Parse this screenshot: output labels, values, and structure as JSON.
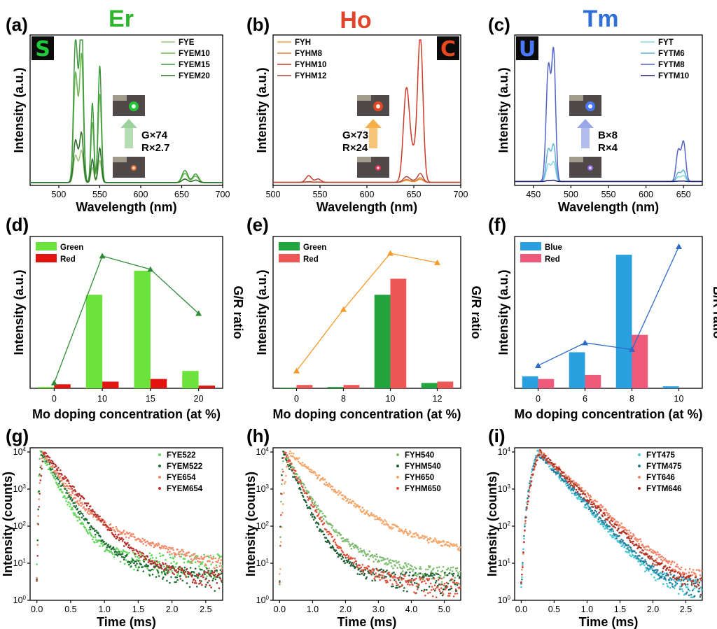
{
  "figure": {
    "panel_labels": [
      "(a)",
      "(b)",
      "(c)",
      "(d)",
      "(e)",
      "(f)",
      "(g)",
      "(h)",
      "(i)"
    ]
  },
  "chart_data": [
    {
      "id": "a",
      "type": "line",
      "element_title": "Er",
      "title_color": "#2db52d",
      "xlabel": "Wavelength (nm)",
      "ylabel": "Intensity (a.u.)",
      "xlim": [
        465,
        700
      ],
      "xticks": [
        500,
        550,
        600,
        650,
        700
      ],
      "ylim": [
        0,
        1
      ],
      "legend_position": "top-right",
      "series": [
        {
          "name": "FYE",
          "color": "#9ec77a"
        },
        {
          "name": "FYEM10",
          "color": "#6cb84e"
        },
        {
          "name": "FYEM15",
          "color": "#3e9a3e"
        },
        {
          "name": "FYEM20",
          "color": "#2a6e2a"
        }
      ],
      "peaks_nm": [
        520,
        528,
        541,
        550,
        655,
        667
      ],
      "peak_scale": [
        0.18,
        0.72,
        0.95,
        0.28
      ],
      "annotation": {
        "line1": "G×74",
        "line2": "R×2.7",
        "arrow_color": "#9ed09e"
      },
      "inset_letter": "S",
      "inset_color": "#22c93a"
    },
    {
      "id": "b",
      "type": "line",
      "element_title": "Ho",
      "title_color": "#e0452b",
      "xlabel": "Wavelength (nm)",
      "ylabel": "Intensity (a.u.)",
      "xlim": [
        500,
        700
      ],
      "xticks": [
        500,
        550,
        600,
        650,
        700
      ],
      "ylim": [
        0,
        1
      ],
      "legend_position": "top-left",
      "series": [
        {
          "name": "FYH",
          "color": "#f0a23a"
        },
        {
          "name": "FYHM8",
          "color": "#e37b34"
        },
        {
          "name": "FYHM10",
          "color": "#cc3a2a"
        },
        {
          "name": "FYHM12",
          "color": "#a8483a"
        }
      ],
      "peaks_nm": [
        540,
        645,
        657
      ],
      "peak_scale": [
        0.02,
        0.03,
        1.0,
        0.06
      ],
      "annotation": {
        "line1": "G×73",
        "line2": "R×24",
        "arrow_color": "#f5b04a"
      },
      "inset_letter": "C",
      "inset_color": "#e8481e"
    },
    {
      "id": "c",
      "type": "line",
      "element_title": "Tm",
      "title_color": "#2f6fd6",
      "xlabel": "Wavelength (nm)",
      "ylabel": "Intensity (a.u.)",
      "xlim": [
        425,
        675
      ],
      "xticks": [
        450,
        500,
        550,
        600,
        650
      ],
      "ylim": [
        0,
        1
      ],
      "legend_position": "top-right",
      "series": [
        {
          "name": "FYT",
          "color": "#86d5e0"
        },
        {
          "name": "FYTM6",
          "color": "#5fb2d9"
        },
        {
          "name": "FYTM8",
          "color": "#5462c9"
        },
        {
          "name": "FYTM10",
          "color": "#1c1a6b"
        }
      ],
      "peaks_nm": [
        470,
        478,
        645,
        650
      ],
      "peak_scale": [
        0.15,
        0.28,
        1.0,
        0.01
      ],
      "annotation": {
        "line1": "B×8",
        "line2": "R×4",
        "arrow_color": "#9aa8e8"
      },
      "inset_letter": "U",
      "inset_color": "#4a78ff"
    },
    {
      "id": "d",
      "type": "bar",
      "xlabel": "Mo doping concentration (at %)",
      "ylabel": "Intensity (a.u.)",
      "y2label": "G/R ratio",
      "categories": [
        "0",
        "10",
        "15",
        "20"
      ],
      "series": [
        {
          "name": "Green",
          "color": "#6ce33c",
          "values": [
            0.01,
            0.7,
            0.88,
            0.13
          ]
        },
        {
          "name": "Red",
          "color": "#e3140f",
          "values": [
            0.03,
            0.05,
            0.07,
            0.02
          ]
        }
      ],
      "ratio": {
        "color": "#2f8c36",
        "values": [
          0.03,
          0.98,
          0.88,
          0.55
        ]
      }
    },
    {
      "id": "e",
      "type": "bar",
      "xlabel": "Mo doping concentration (at %)",
      "ylabel": "Intensity (a.u.)",
      "y2label": "G/R ratio",
      "categories": [
        "0",
        "8",
        "10",
        "12"
      ],
      "series": [
        {
          "name": "Green",
          "color": "#23a43f",
          "values": [
            0.005,
            0.01,
            0.7,
            0.04
          ]
        },
        {
          "name": "Red",
          "color": "#ef5656",
          "values": [
            0.025,
            0.025,
            0.82,
            0.05
          ]
        }
      ],
      "ratio": {
        "color": "#f59a28",
        "values": [
          0.12,
          0.58,
          1.0,
          0.93
        ]
      }
    },
    {
      "id": "f",
      "type": "bar",
      "xlabel": "Mo doping concentration (at %)",
      "ylabel": "Intensity (a.u.)",
      "y2label": "B/R ratio",
      "categories": [
        "0",
        "6",
        "8",
        "10"
      ],
      "series": [
        {
          "name": "Blue",
          "color": "#2aa1de",
          "values": [
            0.09,
            0.27,
            1.0,
            0.015
          ]
        },
        {
          "name": "Red",
          "color": "#ef5a7c",
          "values": [
            0.07,
            0.1,
            0.4,
            0.0
          ]
        }
      ],
      "ratio": {
        "color": "#2c6bc6",
        "values": [
          0.16,
          0.33,
          0.28,
          1.05
        ]
      }
    },
    {
      "id": "g",
      "type": "scatter",
      "xlabel": "Time (ms)",
      "ylabel": "Intensity (counts)",
      "yscale": "log",
      "xlim": [
        -0.1,
        2.75
      ],
      "xticks": [
        0.0,
        0.5,
        1.0,
        1.5,
        2.0,
        2.5
      ],
      "ylim": [
        1,
        10000
      ],
      "series": [
        {
          "name": "FYE522",
          "color": "#5fd65a",
          "peak_t": 0.05,
          "tau": 0.12,
          "tail_t": 0.25,
          "tail_frac": 0.06,
          "floor": 10
        },
        {
          "name": "FYEM522",
          "color": "#1f6e34",
          "peak_t": 0.07,
          "tau": 0.14,
          "tail_t": 0.35,
          "tail_frac": 0.03,
          "floor": 4
        },
        {
          "name": "FYE654",
          "color": "#f08a6a",
          "peak_t": 0.08,
          "tau": 0.15,
          "tail_t": 0.55,
          "tail_frac": 0.05,
          "floor": 6
        },
        {
          "name": "FYEM654",
          "color": "#b5332c",
          "peak_t": 0.1,
          "tau": 0.19,
          "tail_t": 0.45,
          "tail_frac": 0.02,
          "floor": 3
        }
      ]
    },
    {
      "id": "h",
      "type": "scatter",
      "xlabel": "Time (ms)",
      "ylabel": "Intensity (counts)",
      "yscale": "log",
      "xlim": [
        -0.2,
        5.5
      ],
      "xticks": [
        0.0,
        1.0,
        2.0,
        3.0,
        4.0,
        5.0
      ],
      "ylim": [
        1,
        10000
      ],
      "series": [
        {
          "name": "FYH540",
          "color": "#7dbb6e",
          "peak_t": 0.12,
          "tau": 0.28,
          "tail_t": 0.9,
          "tail_frac": 0.02,
          "floor": 4
        },
        {
          "name": "FYHM540",
          "color": "#1f5e33",
          "peak_t": 0.1,
          "tau": 0.22,
          "tail_t": 0.7,
          "tail_frac": 0.01,
          "floor": 3
        },
        {
          "name": "FYH650",
          "color": "#f5a66a",
          "peak_t": 0.3,
          "tau": 0.55,
          "tail_t": 2.0,
          "tail_frac": 0.03,
          "floor": 3
        },
        {
          "name": "FYHM650",
          "color": "#e0553f",
          "peak_t": 0.15,
          "tau": 0.25,
          "tail_t": 0.8,
          "tail_frac": 0.01,
          "floor": 2
        }
      ]
    },
    {
      "id": "i",
      "type": "scatter",
      "xlabel": "Time (ms)",
      "ylabel": "Intensity (counts)",
      "yscale": "log",
      "xlim": [
        -0.1,
        2.75
      ],
      "xticks": [
        0.0,
        0.5,
        1.0,
        1.5,
        2.0,
        2.5
      ],
      "ylim": [
        1,
        10000
      ],
      "series": [
        {
          "name": "FYT475",
          "color": "#46c6d6",
          "peak_t": 0.25,
          "tau": 0.22,
          "tail_t": 3.0,
          "tail_frac": 0.0,
          "floor": 2
        },
        {
          "name": "FYTM475",
          "color": "#2a7e9a",
          "peak_t": 0.25,
          "tau": 0.23,
          "tail_t": 3.0,
          "tail_frac": 0.0,
          "floor": 2
        },
        {
          "name": "FYT646",
          "color": "#f0856a",
          "peak_t": 0.28,
          "tau": 0.27,
          "tail_t": 3.0,
          "tail_frac": 0.0,
          "floor": 3
        },
        {
          "name": "FYTM646",
          "color": "#b23526",
          "peak_t": 0.28,
          "tau": 0.25,
          "tail_t": 3.0,
          "tail_frac": 0.0,
          "floor": 2
        }
      ]
    }
  ]
}
